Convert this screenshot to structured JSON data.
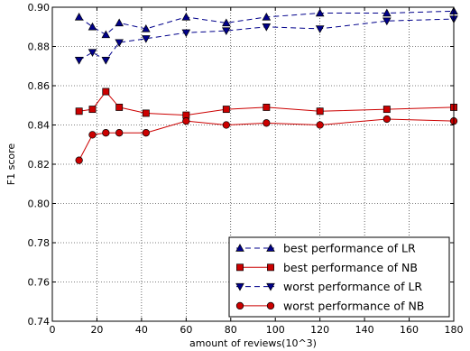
{
  "chart_data": {
    "type": "line",
    "title": "",
    "xlabel": "amount of reviews(10^3)",
    "ylabel": "F1 score",
    "xlim": [
      0,
      180
    ],
    "ylim": [
      0.74,
      0.9
    ],
    "xticks": [
      0,
      20,
      40,
      60,
      80,
      100,
      120,
      140,
      160,
      180
    ],
    "yticks": [
      0.74,
      0.76,
      0.78,
      0.8,
      0.82,
      0.84,
      0.86,
      0.88,
      0.9
    ],
    "xtick_labels": [
      "0",
      "20",
      "40",
      "60",
      "80",
      "100",
      "120",
      "140",
      "160",
      "180"
    ],
    "ytick_labels": [
      "0.74",
      "0.76",
      "0.78",
      "0.80",
      "0.82",
      "0.84",
      "0.86",
      "0.88",
      "0.90"
    ],
    "grid": true,
    "legend_position": "lower-right",
    "x": [
      12,
      18,
      24,
      30,
      42,
      60,
      78,
      96,
      120,
      150,
      180
    ],
    "series": [
      {
        "name": "best performance of LR",
        "color": "#00008b",
        "line_style": "dashed",
        "marker": "triangle-up",
        "values": [
          0.895,
          0.89,
          0.886,
          0.892,
          0.889,
          0.895,
          0.892,
          0.895,
          0.897,
          0.897,
          0.898
        ]
      },
      {
        "name": "best performance of NB",
        "color": "#cc0000",
        "line_style": "solid",
        "marker": "square",
        "values": [
          0.847,
          0.848,
          0.857,
          0.849,
          0.846,
          0.845,
          0.848,
          0.849,
          0.847,
          0.848,
          0.849
        ]
      },
      {
        "name": "worst performance of LR",
        "color": "#00008b",
        "line_style": "dashed",
        "marker": "triangle-down",
        "values": [
          0.873,
          0.877,
          0.873,
          0.882,
          0.884,
          0.887,
          0.888,
          0.89,
          0.889,
          0.893,
          0.894
        ]
      },
      {
        "name": "worst performance of NB",
        "color": "#cc0000",
        "line_style": "solid",
        "marker": "circle",
        "values": [
          0.822,
          0.835,
          0.836,
          0.836,
          0.836,
          0.842,
          0.84,
          0.841,
          0.84,
          0.843,
          0.842
        ]
      }
    ]
  }
}
